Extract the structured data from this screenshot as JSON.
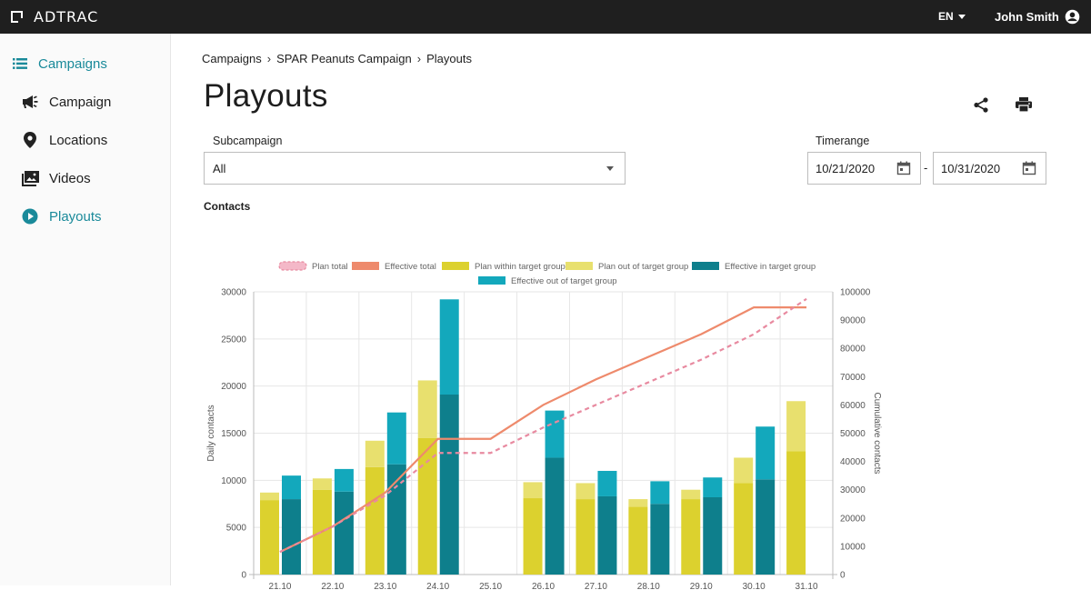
{
  "app": {
    "name": "ADTRAC",
    "language": "EN",
    "user": "John Smith"
  },
  "sidebar": {
    "items": [
      {
        "label": "Campaigns",
        "icon": "list-icon"
      },
      {
        "label": "Campaign",
        "icon": "megaphone-icon"
      },
      {
        "label": "Locations",
        "icon": "location-pin-icon"
      },
      {
        "label": "Videos",
        "icon": "video-library-icon"
      },
      {
        "label": "Playouts",
        "icon": "play-circle-icon"
      }
    ]
  },
  "breadcrumb": [
    "Campaigns",
    "SPAR Peanuts Campaign",
    "Playouts"
  ],
  "page": {
    "title": "Playouts"
  },
  "filters": {
    "subcampaign_label": "Subcampaign",
    "subcampaign_value": "All",
    "timerange_label": "Timerange",
    "date_from": "10/21/2020",
    "date_to": "10/31/2020",
    "separator": "-"
  },
  "colors": {
    "accent": "#1a8a9a",
    "plan_total": "#e88aa0",
    "effective_total": "#ee8a6c",
    "plan_within": "#dcd12e",
    "plan_out": "#e8e06e",
    "effective_in": "#0e7f8c",
    "effective_out": "#13a8bc"
  },
  "chart_data": {
    "type": "bar",
    "title": "Contacts",
    "categories": [
      "21.10",
      "22.10",
      "23.10",
      "24.10",
      "25.10",
      "26.10",
      "27.10",
      "28.10",
      "29.10",
      "30.10",
      "31.10"
    ],
    "ylabel": "Daily contacts",
    "y2label": "Cumulative contacts",
    "ylim": [
      0,
      30000
    ],
    "yticks": [
      0,
      5000,
      10000,
      15000,
      20000,
      25000,
      30000
    ],
    "y2lim": [
      0,
      100000
    ],
    "y2ticks": [
      0,
      10000,
      20000,
      30000,
      40000,
      50000,
      60000,
      70000,
      80000,
      90000,
      100000
    ],
    "legend_position": "top",
    "series": [
      {
        "name": "Plan total",
        "kind": "line",
        "axis": "right",
        "dashed": true,
        "values": [
          8000,
          17000,
          28000,
          43000,
          43000,
          52000,
          60000,
          68000,
          76000,
          85000,
          97500
        ]
      },
      {
        "name": "Effective total",
        "kind": "line",
        "axis": "right",
        "dashed": false,
        "values": [
          8000,
          17000,
          29000,
          48000,
          48000,
          60000,
          69000,
          77000,
          85000,
          94500,
          94500
        ]
      },
      {
        "name": "Plan within target group",
        "kind": "bar",
        "stack": "plan",
        "values": [
          7900,
          9000,
          11400,
          14500,
          null,
          8100,
          8000,
          7200,
          8000,
          9700,
          13100
        ]
      },
      {
        "name": "Plan out of target group",
        "kind": "bar",
        "stack": "plan",
        "values": [
          800,
          1200,
          2800,
          6100,
          null,
          1700,
          1700,
          800,
          1000,
          2700,
          5300
        ]
      },
      {
        "name": "Effective in target group",
        "kind": "bar",
        "stack": "effective",
        "values": [
          8000,
          8800,
          11700,
          19100,
          null,
          12400,
          8300,
          7500,
          8200,
          10100,
          null
        ]
      },
      {
        "name": "Effective out of target group",
        "kind": "bar",
        "stack": "effective",
        "values": [
          2500,
          2400,
          5500,
          10100,
          null,
          5000,
          2700,
          2400,
          2100,
          5600,
          null
        ]
      }
    ]
  }
}
